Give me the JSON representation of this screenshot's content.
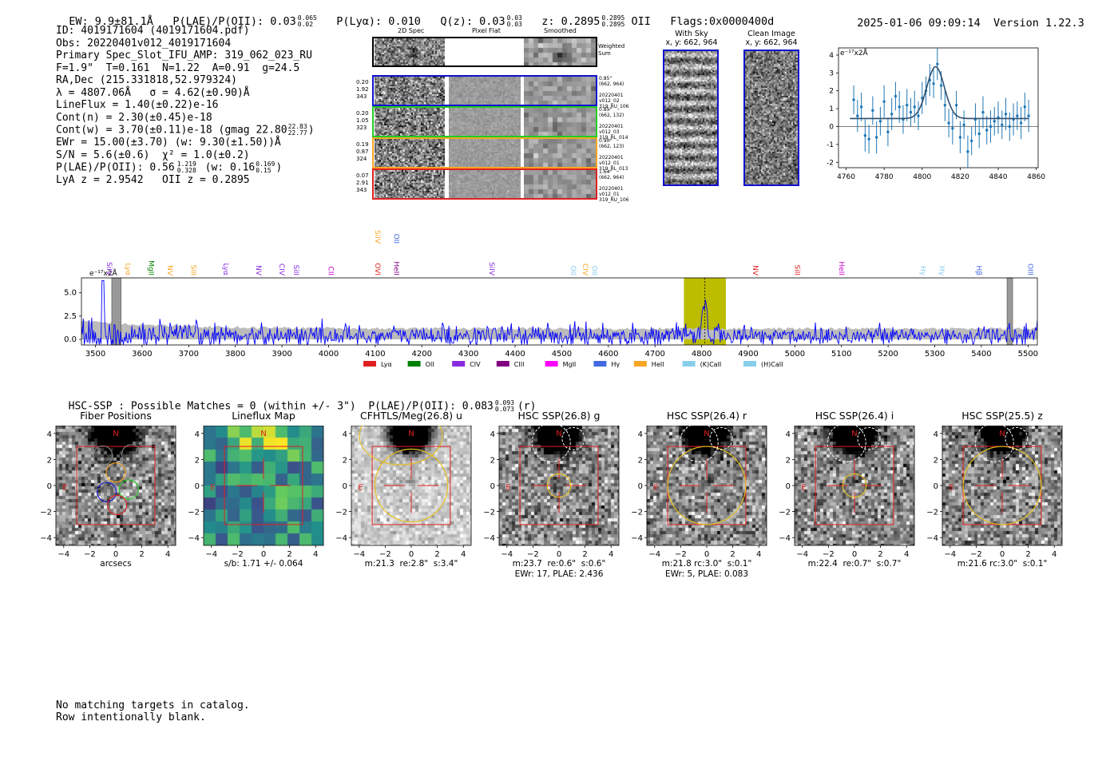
{
  "header": {
    "ew": "EW: 9.9±81.1Å",
    "plae": "P(LAE)/P(OII): 0.03",
    "plae_hi": "0.065",
    "plae_lo": "0.02",
    "plya": "P(Lyα): 0.010",
    "qz": "Q(z): 0.03",
    "qz_hi": "0.03",
    "qz_lo": "0.03",
    "z": "z: 0.2895",
    "z_hi": "0.2895",
    "z_lo": "0.2895",
    "z_line": "OII",
    "flags": "Flags:0x0000400d",
    "timestamp": "2025-01-06 09:09:14",
    "version": "Version 1.22.3"
  },
  "info": {
    "id": "ID: 4019171604 (4019171604.pdf)",
    "obs": "Obs: 20220401v012_4019171604",
    "slot": "Primary Spec_Slot_IFU_AMP: 319_062_023_RU",
    "params": "F=1.9\"  T=0.161  N=1.22  A=0.91  g=24.5",
    "radec": "RA,Dec (215.331818,52.979324)",
    "lambda": "λ = 4807.06Å   σ = 4.62(±0.90)Å",
    "lineflux": "LineFlux = 1.40(±0.22)e-16",
    "contn": "Cont(n) = 2.30(±0.45)e-18",
    "contw": "Cont(w) = 3.70(±0.11)e-18 (gmag 22.80",
    "contw_hi": "22.83",
    "contw_lo": "22.77",
    "contw_end": ")",
    "ewr": "EWr = 15.00(±3.70) (w: 9.30(±1.50))Å",
    "sn": "S/N = 5.6(±0.6)  χ² = 1.0(±0.2)",
    "plae2": "P(LAE)/P(OII): 0.56",
    "plae2_hi": "1.219",
    "plae2_lo": "0.328",
    "plae2_w": "(w: 0.16",
    "plae2_w_hi": "0.169",
    "plae2_w_lo": "0.15",
    "plae2_end": ")",
    "lyaz": "LyA z = 2.9542   OII z = 0.2895"
  },
  "spec2d": {
    "col_headers": [
      "2D Spec",
      "Pixel Flat",
      "Smoothed"
    ],
    "weighted_label": "Weighted\nSum",
    "rows": [
      {
        "left": "0.20\n1.92\n343",
        "right": "0.85\"\n(662, 964)\n\n20220401\nv012_02\n319_RU_106",
        "color": "#1010d0"
      },
      {
        "left": "0.20\n1.05\n323",
        "right": "0.85\"\n(662, 132)\n\n20220401\nv012_03\n319_RL_014",
        "color": "#22cc22"
      },
      {
        "left": "0.19\n0.87\n324",
        "right": "0.90\"\n(662, 123)\n\n20220401\nv012_01\n319_RL_013",
        "color": "#f5a623"
      },
      {
        "left": "0.07\n2.91\n343",
        "right": "1.64\"\n(662, 964)\n\n20220401\nv012_01\n319_RU_106",
        "color": "#e02020"
      }
    ]
  },
  "cutouts": {
    "with_sky_title": "With Sky",
    "with_sky_coord": "x, y: 662, 964",
    "clean_title": "Clean Image",
    "clean_coord": "x, y: 662, 964"
  },
  "chart_data": [
    {
      "type": "scatter",
      "title": "",
      "units_label": "e⁻¹⁷x2Å",
      "xlim": [
        4756,
        4861
      ],
      "ylim": [
        -2.3,
        4.4
      ],
      "xticks": [
        4760,
        4780,
        4800,
        4820,
        4840,
        4860
      ],
      "yticks": [
        -2,
        -1,
        0,
        1,
        2,
        3,
        4
      ],
      "points": [
        {
          "x": 4764,
          "y": 1.5,
          "e": 0.8
        },
        {
          "x": 4766,
          "y": 0.6,
          "e": 0.9
        },
        {
          "x": 4768,
          "y": 1.1,
          "e": 0.8
        },
        {
          "x": 4770,
          "y": -0.5,
          "e": 0.9
        },
        {
          "x": 4772,
          "y": -0.7,
          "e": 0.8
        },
        {
          "x": 4774,
          "y": 0.9,
          "e": 0.8
        },
        {
          "x": 4776,
          "y": -0.6,
          "e": 0.9
        },
        {
          "x": 4778,
          "y": 0.3,
          "e": 0.8
        },
        {
          "x": 4780,
          "y": 1.4,
          "e": 0.9
        },
        {
          "x": 4782,
          "y": -0.3,
          "e": 0.8
        },
        {
          "x": 4784,
          "y": 0.7,
          "e": 0.9
        },
        {
          "x": 4786,
          "y": 1.7,
          "e": 0.8
        },
        {
          "x": 4788,
          "y": 1.1,
          "e": 0.9
        },
        {
          "x": 4790,
          "y": 0.4,
          "e": 0.8
        },
        {
          "x": 4792,
          "y": 1.2,
          "e": 0.9
        },
        {
          "x": 4794,
          "y": 0.8,
          "e": 0.8
        },
        {
          "x": 4796,
          "y": 1.1,
          "e": 0.9
        },
        {
          "x": 4798,
          "y": 0.6,
          "e": 0.8
        },
        {
          "x": 4800,
          "y": 1.6,
          "e": 0.9
        },
        {
          "x": 4802,
          "y": 2.0,
          "e": 0.8
        },
        {
          "x": 4804,
          "y": 2.6,
          "e": 0.9
        },
        {
          "x": 4806,
          "y": 2.4,
          "e": 0.8
        },
        {
          "x": 4808,
          "y": 3.5,
          "e": 0.9
        },
        {
          "x": 4810,
          "y": 2.3,
          "e": 0.8
        },
        {
          "x": 4812,
          "y": 1.2,
          "e": 0.9
        },
        {
          "x": 4814,
          "y": 0.2,
          "e": 0.8
        },
        {
          "x": 4816,
          "y": -0.1,
          "e": 0.9
        },
        {
          "x": 4818,
          "y": 1.2,
          "e": 0.8
        },
        {
          "x": 4820,
          "y": -0.6,
          "e": 0.9
        },
        {
          "x": 4822,
          "y": 0.1,
          "e": 0.8
        },
        {
          "x": 4824,
          "y": -1.4,
          "e": 0.9
        },
        {
          "x": 4826,
          "y": -0.8,
          "e": 0.8
        },
        {
          "x": 4828,
          "y": 0.4,
          "e": 0.9
        },
        {
          "x": 4830,
          "y": -0.4,
          "e": 0.8
        },
        {
          "x": 4832,
          "y": 0.8,
          "e": 0.9
        },
        {
          "x": 4834,
          "y": -0.2,
          "e": 0.8
        },
        {
          "x": 4836,
          "y": 0.0,
          "e": 0.9
        },
        {
          "x": 4838,
          "y": 0.3,
          "e": 0.8
        },
        {
          "x": 4840,
          "y": 0.5,
          "e": 0.9
        },
        {
          "x": 4842,
          "y": 0.1,
          "e": 0.8
        },
        {
          "x": 4844,
          "y": 0.7,
          "e": 0.9
        },
        {
          "x": 4846,
          "y": 0.0,
          "e": 0.8
        },
        {
          "x": 4848,
          "y": 0.4,
          "e": 0.9
        },
        {
          "x": 4850,
          "y": 0.6,
          "e": 0.8
        },
        {
          "x": 4852,
          "y": 0.2,
          "e": 0.9
        },
        {
          "x": 4854,
          "y": 1.1,
          "e": 0.8
        },
        {
          "x": 4856,
          "y": 0.6,
          "e": 0.9
        }
      ],
      "fit": {
        "baseline": 0.45,
        "amplitude": 2.9,
        "center": 4807.06,
        "sigma": 4.62
      }
    },
    {
      "type": "line",
      "title": "",
      "units_label": "e⁻¹⁷x2Å",
      "xlim": [
        3470,
        5520
      ],
      "ylim": [
        -0.6,
        6.6
      ],
      "xticks": [
        3500,
        3600,
        3700,
        3800,
        3900,
        4000,
        4100,
        4200,
        4300,
        4400,
        4500,
        4600,
        4700,
        4800,
        4900,
        5000,
        5100,
        5200,
        5300,
        5400,
        5500
      ],
      "yticks": [
        0.0,
        2.5,
        5.0
      ],
      "yticklabels": [
        "0.0",
        "2.5",
        "5.0"
      ],
      "highlight_range": [
        4762,
        4852
      ],
      "marker_x": 4807,
      "masked_ranges": [
        [
          3535,
          3555
        ],
        [
          5455,
          5467
        ]
      ],
      "line_labels": [
        {
          "x": 3520,
          "label": "SiIV",
          "color": "#8a2be2",
          "row": 1
        },
        {
          "x": 3560,
          "label": "Lyα",
          "color": "#f5a623",
          "row": 1
        },
        {
          "x": 3610,
          "label": "MgII",
          "color": "#008000",
          "row": 1
        },
        {
          "x": 3650,
          "label": "NV",
          "color": "#f5a623",
          "row": 1
        },
        {
          "x": 3700,
          "label": "SiII",
          "color": "#f5a623",
          "row": 1
        },
        {
          "x": 3770,
          "label": "Lyα",
          "color": "#8a2be2",
          "row": 1
        },
        {
          "x": 3840,
          "label": "NV",
          "color": "#8a2be2",
          "row": 1
        },
        {
          "x": 3890,
          "label": "CIV",
          "color": "#8a2be2",
          "row": 1
        },
        {
          "x": 3920,
          "label": "SiII",
          "color": "#8a2be2",
          "row": 1
        },
        {
          "x": 3995,
          "label": "CII",
          "color": "#cc00cc",
          "row": 1
        },
        {
          "x": 4095,
          "label": "OVI",
          "color": "#e02020",
          "row": 1
        },
        {
          "x": 4135,
          "label": "HeII",
          "color": "#800080",
          "row": 1
        },
        {
          "x": 4095,
          "label": "SiIV",
          "color": "#f5a623",
          "row": 0
        },
        {
          "x": 4135,
          "label": "OII",
          "color": "#4169e1",
          "row": 0
        },
        {
          "x": 4340,
          "label": "SiIV",
          "color": "#8a2be2",
          "row": 1
        },
        {
          "x": 4515,
          "label": "OII",
          "color": "#87ceeb",
          "row": 1
        },
        {
          "x": 4540,
          "label": "CIV",
          "color": "#f5a623",
          "row": 1
        },
        {
          "x": 4560,
          "label": "OII",
          "color": "#87ceeb",
          "row": 1
        },
        {
          "x": 4905,
          "label": "NV",
          "color": "#e02020",
          "row": 1
        },
        {
          "x": 4995,
          "label": "SiII",
          "color": "#e02020",
          "row": 1
        },
        {
          "x": 5090,
          "label": "HeII",
          "color": "#cc00cc",
          "row": 1
        },
        {
          "x": 5265,
          "label": "Hγ",
          "color": "#87ceeb",
          "row": 1
        },
        {
          "x": 5305,
          "label": "Hγ",
          "color": "#87ceeb",
          "row": 1
        },
        {
          "x": 5385,
          "label": "Hβ",
          "color": "#4169e1",
          "row": 1
        },
        {
          "x": 5495,
          "label": "OIII",
          "color": "#4169e1",
          "row": 1
        }
      ],
      "legend": [
        {
          "label": "Lyα",
          "color": "#e02020"
        },
        {
          "label": "OII",
          "color": "#008000"
        },
        {
          "label": "CIV",
          "color": "#8a2be2"
        },
        {
          "label": "CIII",
          "color": "#800080"
        },
        {
          "label": "MgII",
          "color": "#ff00ff"
        },
        {
          "label": "Hγ",
          "color": "#4169e1"
        },
        {
          "label": "HeII",
          "color": "#f5a623"
        },
        {
          "label": "(K)CaII",
          "color": "#87ceeb"
        },
        {
          "label": "(H)CaII",
          "color": "#87ceeb"
        }
      ],
      "series_color": "#0000ff",
      "error_color": "#bbbbbb",
      "noise_sigma": 1.0,
      "emission_peak": {
        "x": 4807,
        "y": 3.6
      }
    }
  ],
  "hsc": {
    "summary": "HSC-SSP : Possible Matches = 0 (within +/- 3\")  P(LAE)/P(OII): 0.083",
    "summary_hi": "0.093",
    "summary_lo": "0.073",
    "summary_end": "(r)"
  },
  "panels": [
    {
      "title": "Fiber Positions",
      "caption1": "arcsecs",
      "caption2": "",
      "kind": "fiber",
      "aperture_r": 0
    },
    {
      "title": "Lineflux Map",
      "caption1": "s/b: 1.71 +/- 0.064",
      "caption2": "",
      "kind": "lineflux",
      "aperture_r": 0
    },
    {
      "title": "CFHTLS/Meg(26.8) u",
      "caption1": "m:21.3  re:2.8\"  s:3.4\"",
      "caption2": "",
      "kind": "gray_light",
      "aperture_r": 2.8
    },
    {
      "title": "HSC SSP(26.8) g",
      "caption1": "m:23.7  re:0.6\"  s:0.6\"",
      "caption2": "EWr: 17, PLAE: 2.436",
      "kind": "gray",
      "aperture_r": 0.9
    },
    {
      "title": "HSC SSP(26.4) r",
      "caption1": "m:21.8 rc:3.0\"  s:0.1\"",
      "caption2": "EWr: 5, PLAE: 0.083",
      "kind": "gray",
      "aperture_r": 3.0
    },
    {
      "title": "HSC SSP(26.4) i",
      "caption1": "m:22.4  re:0.7\"  s:0.7\"",
      "caption2": "",
      "kind": "gray",
      "aperture_r": 0.9
    },
    {
      "title": "HSC SSP(25.5) z",
      "caption1": "m:21.6 rc:3.0\"  s:0.1\"",
      "caption2": "",
      "kind": "gray",
      "aperture_r": 3.0
    }
  ],
  "panel_axes": {
    "ticks": [
      -4,
      -2,
      0,
      2,
      4
    ],
    "ticklabels": [
      "−4",
      "−2",
      "0",
      "2",
      "4"
    ],
    "north": "N",
    "east": "E"
  },
  "footer": {
    "line1": "No matching targets in catalog.",
    "line2": "Row intentionally blank."
  },
  "colors": {
    "box_red": "#e02020",
    "aperture": "#e8c020",
    "fiber_blue": "#1010d0",
    "fiber_green": "#22cc22",
    "fiber_orange": "#f5a623",
    "fiber_red": "#e02020",
    "highlight": "#bcbc00"
  }
}
